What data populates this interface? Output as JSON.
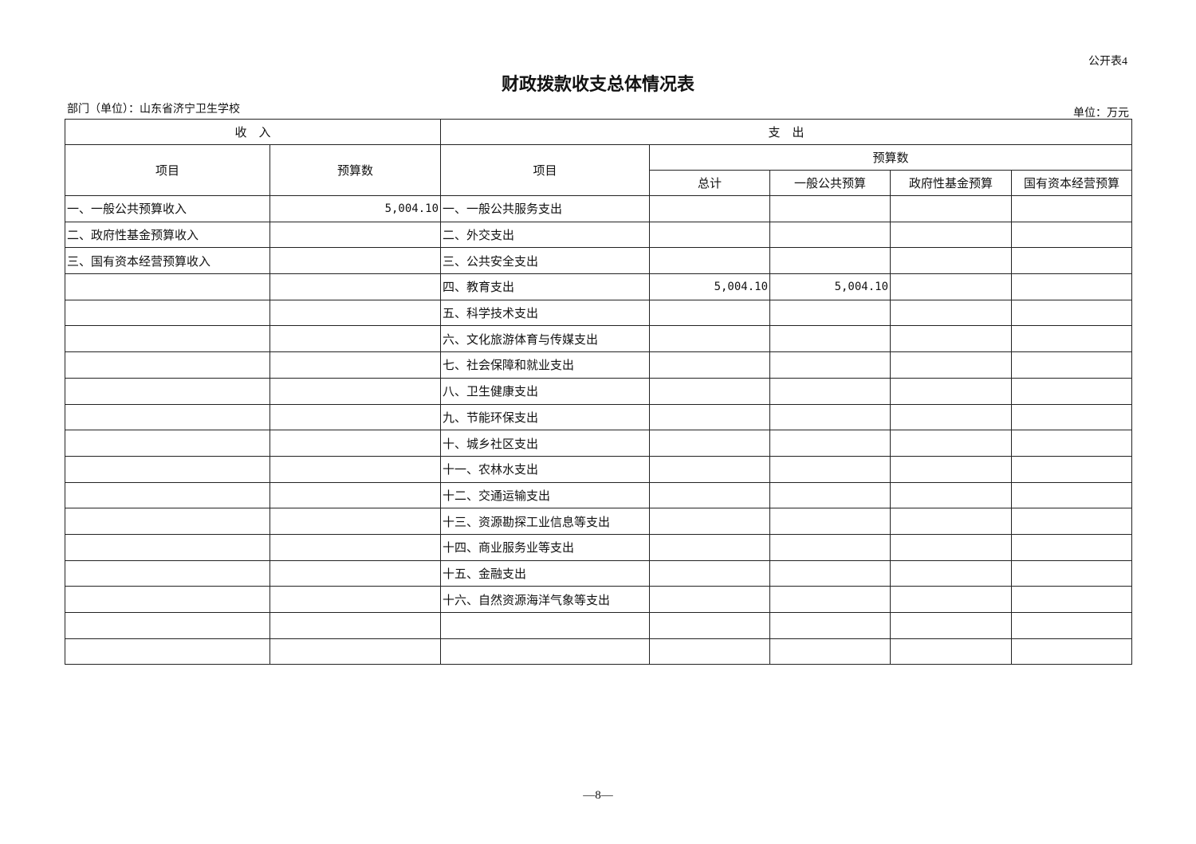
{
  "form_no": "公开表4",
  "title": "财政拨款收支总体情况表",
  "department": "部门（单位）：山东省济宁卫生学校",
  "unit": "单位：万元",
  "headers": {
    "income": "收　入",
    "expense": "支　出",
    "item": "项目",
    "budget": "预算数",
    "expense_item": "项目",
    "expense_budget": "预算数",
    "total": "总计",
    "general": "一般公共预算",
    "fund": "政府性基金预算",
    "state_capital": "国有资本经营预算"
  },
  "rows": [
    {
      "income_item": "一、一般公共预算收入",
      "income_amount": "5,004.10",
      "expense_item": "一、一般公共服务支出",
      "total": "",
      "general": "",
      "fund": "",
      "state_capital": ""
    },
    {
      "income_item": "二、政府性基金预算收入",
      "income_amount": "",
      "expense_item": "二、外交支出",
      "total": "",
      "general": "",
      "fund": "",
      "state_capital": ""
    },
    {
      "income_item": "三、国有资本经营预算收入",
      "income_amount": "",
      "expense_item": "三、公共安全支出",
      "total": "",
      "general": "",
      "fund": "",
      "state_capital": ""
    },
    {
      "income_item": "",
      "income_amount": "",
      "expense_item": "四、教育支出",
      "total": "5,004.10",
      "general": "5,004.10",
      "fund": "",
      "state_capital": ""
    },
    {
      "income_item": "",
      "income_amount": "",
      "expense_item": "五、科学技术支出",
      "total": "",
      "general": "",
      "fund": "",
      "state_capital": ""
    },
    {
      "income_item": "",
      "income_amount": "",
      "expense_item": "六、文化旅游体育与传媒支出",
      "total": "",
      "general": "",
      "fund": "",
      "state_capital": ""
    },
    {
      "income_item": "",
      "income_amount": "",
      "expense_item": "七、社会保障和就业支出",
      "total": "",
      "general": "",
      "fund": "",
      "state_capital": ""
    },
    {
      "income_item": "",
      "income_amount": "",
      "expense_item": "八、卫生健康支出",
      "total": "",
      "general": "",
      "fund": "",
      "state_capital": ""
    },
    {
      "income_item": "",
      "income_amount": "",
      "expense_item": "九、节能环保支出",
      "total": "",
      "general": "",
      "fund": "",
      "state_capital": ""
    },
    {
      "income_item": "",
      "income_amount": "",
      "expense_item": "十、城乡社区支出",
      "total": "",
      "general": "",
      "fund": "",
      "state_capital": ""
    },
    {
      "income_item": "",
      "income_amount": "",
      "expense_item": "十一、农林水支出",
      "total": "",
      "general": "",
      "fund": "",
      "state_capital": ""
    },
    {
      "income_item": "",
      "income_amount": "",
      "expense_item": "十二、交通运输支出",
      "total": "",
      "general": "",
      "fund": "",
      "state_capital": ""
    },
    {
      "income_item": "",
      "income_amount": "",
      "expense_item": "十三、资源勘探工业信息等支出",
      "total": "",
      "general": "",
      "fund": "",
      "state_capital": ""
    },
    {
      "income_item": "",
      "income_amount": "",
      "expense_item": "十四、商业服务业等支出",
      "total": "",
      "general": "",
      "fund": "",
      "state_capital": ""
    },
    {
      "income_item": "",
      "income_amount": "",
      "expense_item": "十五、金融支出",
      "total": "",
      "general": "",
      "fund": "",
      "state_capital": ""
    },
    {
      "income_item": "",
      "income_amount": "",
      "expense_item": "十六、自然资源海洋气象等支出",
      "total": "",
      "general": "",
      "fund": "",
      "state_capital": ""
    },
    {
      "income_item": "",
      "income_amount": "",
      "expense_item": "",
      "total": "",
      "general": "",
      "fund": "",
      "state_capital": ""
    },
    {
      "income_item": "",
      "income_amount": "",
      "expense_item": "",
      "total": "",
      "general": "",
      "fund": "",
      "state_capital": ""
    }
  ],
  "page_number": "—8—"
}
